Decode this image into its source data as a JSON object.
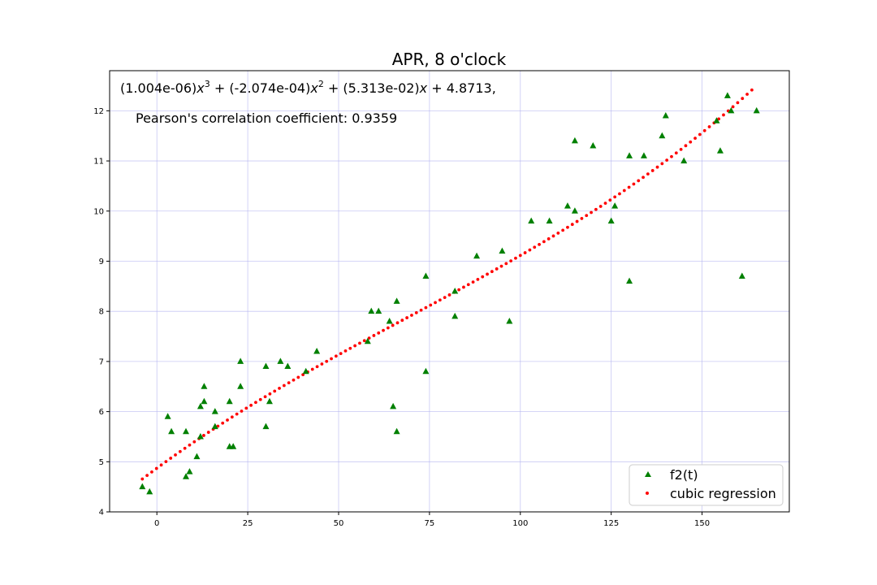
{
  "chart_data": {
    "type": "scatter",
    "title": "APR, 8 o'clock",
    "xlabel": "",
    "ylabel": "",
    "xlim": [
      -13,
      174
    ],
    "ylim": [
      4,
      12.8
    ],
    "x_ticks": [
      0,
      25,
      50,
      75,
      100,
      125,
      150
    ],
    "y_ticks": [
      4,
      5,
      6,
      7,
      8,
      9,
      10,
      11,
      12
    ],
    "grid": true,
    "legend_position": "bottom-right",
    "annotations": {
      "equation_parts": [
        "(1.004e-06)",
        "x",
        "3",
        " + (-2.074e-04)",
        "x",
        "2",
        " + (5.313e-02)",
        "x",
        " + 4.8713,"
      ],
      "pearson": "Pearson's correlation coefficient: 0.9359"
    },
    "regression": {
      "name": "cubic regression",
      "color": "#ff0000",
      "coefficients": [
        1.004e-06,
        -0.0002074,
        0.05313,
        4.8713
      ],
      "x_range": [
        -4,
        164
      ],
      "step": 1.3
    },
    "series": [
      {
        "name": "f2(t)",
        "color": "#008000",
        "marker": "triangle",
        "points": [
          [
            -4,
            4.5
          ],
          [
            -2,
            4.4
          ],
          [
            3,
            5.9
          ],
          [
            4,
            5.6
          ],
          [
            8,
            5.6
          ],
          [
            8,
            4.7
          ],
          [
            9,
            4.8
          ],
          [
            11,
            5.1
          ],
          [
            12,
            5.5
          ],
          [
            12,
            6.1
          ],
          [
            13,
            6.5
          ],
          [
            13,
            6.2
          ],
          [
            16,
            6.0
          ],
          [
            16,
            5.7
          ],
          [
            20,
            6.2
          ],
          [
            20,
            5.3
          ],
          [
            21,
            5.3
          ],
          [
            23,
            7.0
          ],
          [
            23,
            6.5
          ],
          [
            30,
            6.9
          ],
          [
            30,
            5.7
          ],
          [
            31,
            6.2
          ],
          [
            34,
            7.0
          ],
          [
            36,
            6.9
          ],
          [
            41,
            6.8
          ],
          [
            44,
            7.2
          ],
          [
            58,
            7.4
          ],
          [
            59,
            8.0
          ],
          [
            61,
            8.0
          ],
          [
            64,
            7.8
          ],
          [
            65,
            6.1
          ],
          [
            66,
            8.2
          ],
          [
            66,
            5.6
          ],
          [
            74,
            8.7
          ],
          [
            74,
            6.8
          ],
          [
            82,
            8.4
          ],
          [
            82,
            7.9
          ],
          [
            88,
            9.1
          ],
          [
            95,
            9.2
          ],
          [
            97,
            7.8
          ],
          [
            103,
            9.8
          ],
          [
            108,
            9.8
          ],
          [
            113,
            10.1
          ],
          [
            115,
            10.0
          ],
          [
            115,
            11.4
          ],
          [
            120,
            11.3
          ],
          [
            125,
            9.8
          ],
          [
            126,
            10.1
          ],
          [
            130,
            11.1
          ],
          [
            130,
            8.6
          ],
          [
            134,
            11.1
          ],
          [
            139,
            11.5
          ],
          [
            140,
            11.9
          ],
          [
            145,
            11.0
          ],
          [
            154,
            11.8
          ],
          [
            155,
            11.2
          ],
          [
            157,
            12.3
          ],
          [
            158,
            12.0
          ],
          [
            161,
            8.7
          ],
          [
            165,
            12.0
          ]
        ]
      }
    ]
  }
}
